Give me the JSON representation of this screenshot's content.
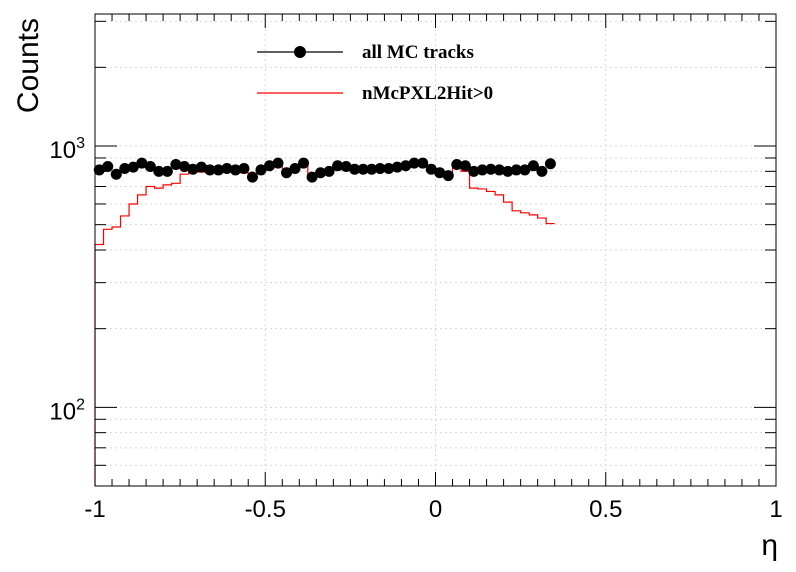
{
  "chart_data": {
    "type": "scatter",
    "xlabel": "η",
    "ylabel": "Counts",
    "xlim": [
      -1,
      1
    ],
    "ylim": [
      50,
      3200
    ],
    "yscale": "log",
    "grid": true,
    "legend_position": "top-center",
    "x_ticks": [
      {
        "value": -1,
        "label": "-1"
      },
      {
        "value": -0.5,
        "label": "-0.5"
      },
      {
        "value": 0,
        "label": "0"
      },
      {
        "value": 0.5,
        "label": "0.5"
      },
      {
        "value": 1,
        "label": "1"
      }
    ],
    "y_ticks": [
      {
        "value": 100,
        "base": "10",
        "exp": "2"
      },
      {
        "value": 1000,
        "base": "10",
        "exp": "3"
      }
    ],
    "bin_edges_start": -1,
    "bin_width": 0.025,
    "series": [
      {
        "name": "all MC tracks",
        "style": "markers",
        "color": "#000000",
        "values": [
          810,
          835,
          780,
          820,
          830,
          860,
          835,
          800,
          800,
          850,
          835,
          815,
          830,
          810,
          810,
          820,
          810,
          820,
          760,
          810,
          840,
          860,
          790,
          820,
          860,
          760,
          790,
          800,
          840,
          835,
          815,
          815,
          815,
          820,
          820,
          830,
          840,
          860,
          860,
          815,
          790,
          770,
          850,
          840,
          800,
          810,
          815,
          810,
          800,
          810,
          810,
          840,
          800,
          855
        ]
      },
      {
        "name": "nMcPXL2Hit>0",
        "style": "step",
        "color": "#ff0000",
        "values": [
          420,
          480,
          490,
          540,
          600,
          650,
          700,
          690,
          710,
          720,
          780,
          800,
          795,
          790,
          790,
          800,
          800,
          790,
          750,
          800,
          820,
          845,
          780,
          810,
          850,
          750,
          775,
          790,
          820,
          810,
          800,
          800,
          805,
          805,
          810,
          815,
          830,
          845,
          845,
          800,
          775,
          765,
          830,
          800,
          690,
          685,
          670,
          650,
          610,
          565,
          555,
          545,
          530,
          505
        ]
      }
    ]
  },
  "colors": {
    "markers": "#000000",
    "step": "#ff0000",
    "grid": "#d8d8d8"
  }
}
